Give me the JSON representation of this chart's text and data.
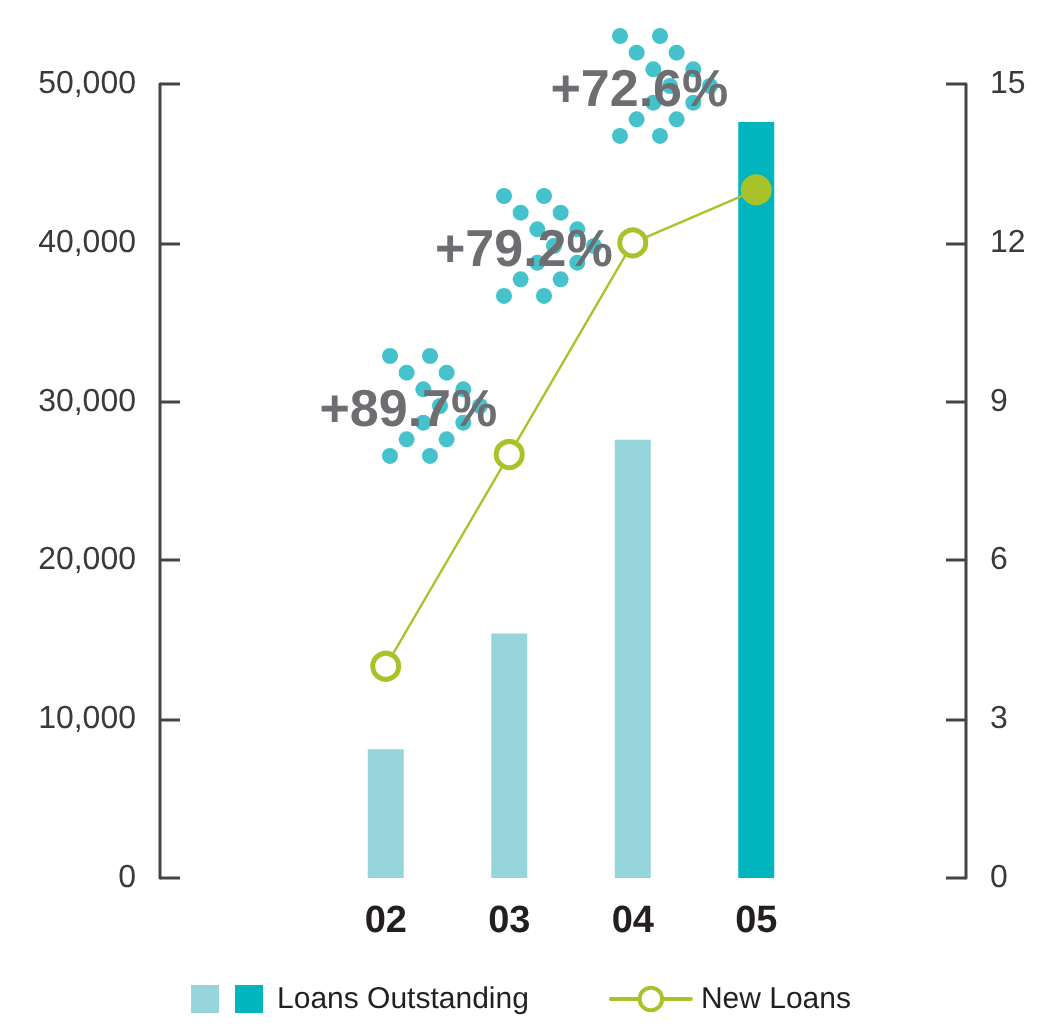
{
  "chart_data": {
    "type": "bar",
    "categories": [
      "02",
      "03",
      "04",
      "05"
    ],
    "series": [
      {
        "name": "Loans Outstanding",
        "colors": [
          "#96d5dc",
          "#96d5dc",
          "#96d5dc",
          "#00b5bd"
        ],
        "values": [
          8100,
          15400,
          27600,
          47600
        ]
      },
      {
        "name": "New Loans",
        "type": "line",
        "axis": "y2",
        "color": "#a8c22a",
        "colors": [
          "#ffffff",
          "#ffffff",
          "#ffffff",
          "#a8c22a"
        ],
        "values": [
          4,
          8,
          12,
          13
        ]
      }
    ],
    "ylim": [
      0,
      50000
    ],
    "yticks": [
      0,
      {
        "value": 10000,
        "label": "10,000"
      },
      {
        "value": 20000,
        "label": "20,000"
      },
      {
        "value": 30000,
        "label": "30,000"
      },
      {
        "value": 40000,
        "label": "40,000"
      },
      {
        "value": 50000,
        "label": "50,000"
      }
    ],
    "y2lim": [
      0,
      15
    ],
    "y2ticks": [
      0,
      3,
      6,
      9,
      12,
      15
    ],
    "annotations": [
      "+89.7%",
      "+79.2%",
      "+72.6%"
    ],
    "marker": "circle",
    "legend": "bottom"
  }
}
